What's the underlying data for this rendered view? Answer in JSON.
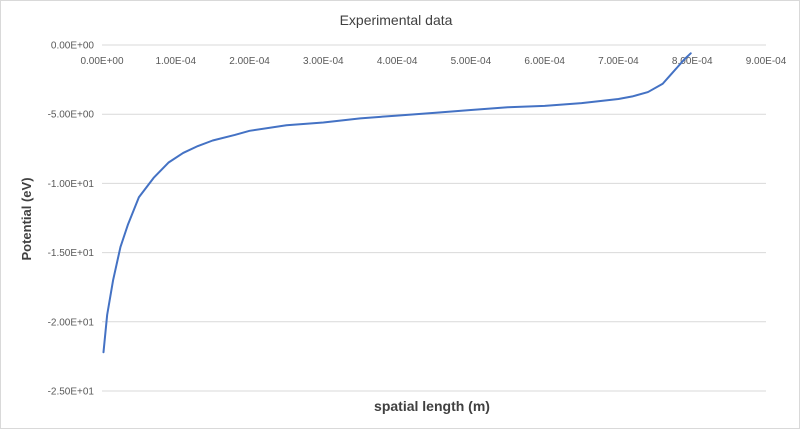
{
  "chart_data": {
    "type": "line",
    "title": "Experimental data",
    "xlabel": "spatial length (m)",
    "ylabel": "Potential (eV)",
    "xlim": [
      0,
      0.0009
    ],
    "ylim": [
      -25,
      0
    ],
    "x_ticks": [
      0,
      0.0001,
      0.0002,
      0.0003,
      0.0004,
      0.0005,
      0.0006,
      0.0007,
      0.0008,
      0.0009
    ],
    "x_tick_labels": [
      "0.00E+00",
      "1.00E-04",
      "2.00E-04",
      "3.00E-04",
      "4.00E-04",
      "5.00E-04",
      "6.00E-04",
      "7.00E-04",
      "8.00E-04",
      "9.00E-04"
    ],
    "y_ticks": [
      0,
      -5,
      -10,
      -15,
      -20,
      -25
    ],
    "y_tick_labels": [
      "0.00E+00",
      "-5.00E+00",
      "-1.00E+01",
      "-1.50E+01",
      "-2.00E+01",
      "-2.50E+01"
    ],
    "grid": true,
    "series_color": "#4472c4",
    "series": [
      {
        "x": [
          2e-06,
          7e-06,
          1.5e-05,
          2.5e-05,
          3.5e-05,
          5e-05,
          7e-05,
          9e-05,
          0.00011,
          0.00013,
          0.00015,
          0.00018,
          0.0002,
          0.00025,
          0.0003,
          0.00035,
          0.0004,
          0.00045,
          0.0005,
          0.00055,
          0.0006,
          0.00065,
          0.0007,
          0.00072,
          0.00074,
          0.00076,
          0.00077,
          0.00078,
          0.00079,
          0.000798
        ],
        "values": [
          -22.2,
          -19.5,
          -17.0,
          -14.6,
          -13.0,
          -11.0,
          -9.6,
          -8.5,
          -7.8,
          -7.3,
          -6.9,
          -6.5,
          -6.2,
          -5.8,
          -5.6,
          -5.3,
          -5.1,
          -4.9,
          -4.7,
          -4.5,
          -4.4,
          -4.2,
          -3.9,
          -3.7,
          -3.4,
          -2.8,
          -2.2,
          -1.6,
          -1.0,
          -0.6
        ]
      }
    ]
  },
  "colors": {
    "grid": "#d9d9d9",
    "text": "#595959",
    "title": "#404040"
  }
}
